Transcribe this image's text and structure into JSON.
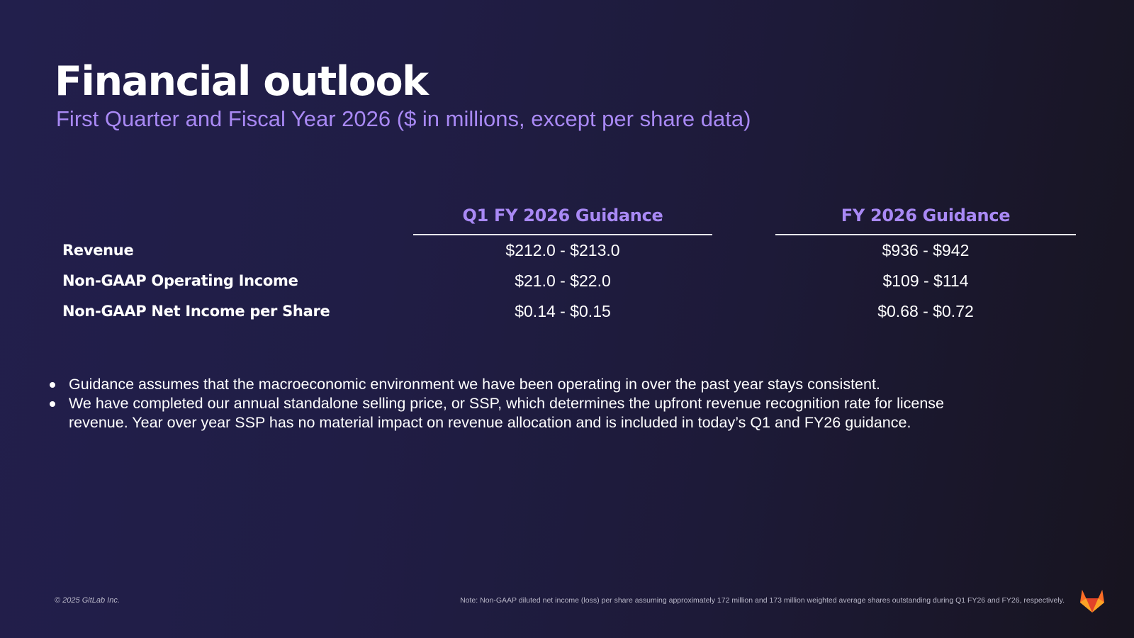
{
  "header": {
    "title": "Financial outlook",
    "subtitle": "First Quarter and Fiscal Year 2026 ($ in millions, except per share data)"
  },
  "table": {
    "columns": [
      "Q1 FY 2026 Guidance",
      "FY 2026 Guidance"
    ],
    "rows": [
      {
        "label": "Revenue",
        "q1": "$212.0 - $213.0",
        "fy": "$936 - $942"
      },
      {
        "label": "Non-GAAP Operating Income",
        "q1": "$21.0 - $22.0",
        "fy": "$109 - $114"
      },
      {
        "label": "Non-GAAP Net Income per Share",
        "q1": "$0.14 - $0.15",
        "fy": "$0.68 - $0.72"
      }
    ]
  },
  "bullets": [
    "Guidance assumes that the macroeconomic environment we have been operating in over the past year stays consistent.",
    "We have completed our annual standalone selling price, or SSP, which determines the upfront revenue recognition rate for license revenue. Year over year SSP has no material impact on revenue allocation and is included in today’s Q1 and FY26 guidance."
  ],
  "footer": {
    "copyright": "© 2025 GitLab Inc.",
    "note": "Note: Non-GAAP diluted net income (loss) per share assuming approximately 172 million and 173 million weighted average shares outstanding during Q1 FY26 and FY26, respectively.",
    "logo_icon": "gitlab-tanuki-logo-icon"
  },
  "colors": {
    "background": "#201d45",
    "accent": "#a989f5",
    "text": "#ffffff",
    "logo_orange": "#fc6d26",
    "logo_red": "#e24329",
    "logo_amber": "#fca326"
  }
}
